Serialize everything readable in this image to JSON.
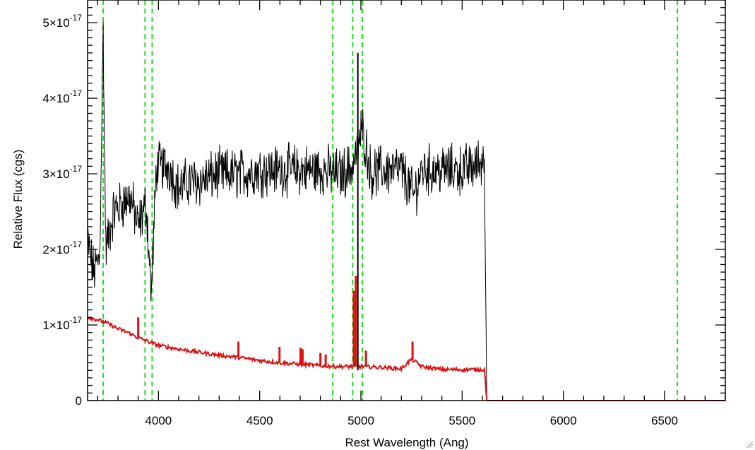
{
  "chart_data": {
    "type": "line",
    "title": "",
    "xlabel": "Rest Wavelength (Ang)",
    "ylabel": "Relative Flux (cgs)",
    "xlim": [
      3650,
      6800
    ],
    "ylim": [
      0,
      5.3e-17
    ],
    "x_ticks": [
      {
        "value": 4000,
        "label": "4000"
      },
      {
        "value": 4500,
        "label": "4500"
      },
      {
        "value": 5000,
        "label": "5000"
      },
      {
        "value": 5500,
        "label": "5500"
      },
      {
        "value": 6000,
        "label": "6000"
      },
      {
        "value": 6500,
        "label": "6500"
      }
    ],
    "y_ticks": [
      {
        "value": 0,
        "mantissa": "0",
        "exponent": ""
      },
      {
        "value": 1e-17,
        "mantissa": "1×10",
        "exponent": "-17"
      },
      {
        "value": 2e-17,
        "mantissa": "2×10",
        "exponent": "-17"
      },
      {
        "value": 3e-17,
        "mantissa": "3×10",
        "exponent": "-17"
      },
      {
        "value": 4e-17,
        "mantissa": "4×10",
        "exponent": "-17"
      },
      {
        "value": 5e-17,
        "mantissa": "5×10",
        "exponent": "-17"
      }
    ],
    "reference_lines": {
      "color": "#22dd22",
      "style": "dashed",
      "x": [
        3727,
        3934,
        3969,
        4861,
        4959,
        5007,
        6563
      ]
    },
    "black_marker_line": {
      "x": 4985,
      "y_top": 4.6e-17,
      "y_bottom": 4e-18
    },
    "series": [
      {
        "color": "#000000",
        "noisy": true,
        "points": [
          [
            3650,
            2.1e-17
          ],
          [
            3680,
            1.7e-17
          ],
          [
            3710,
            1.9e-17
          ],
          [
            3727,
            4.9e-17
          ],
          [
            3740,
            2e-17
          ],
          [
            3780,
            2.5e-17
          ],
          [
            3820,
            2.6e-17
          ],
          [
            3860,
            2.7e-17
          ],
          [
            3900,
            2.3e-17
          ],
          [
            3940,
            2.6e-17
          ],
          [
            3965,
            1.4e-17
          ],
          [
            3990,
            3.1e-17
          ],
          [
            4050,
            3.1e-17
          ],
          [
            4100,
            2.8e-17
          ],
          [
            4150,
            2.9e-17
          ],
          [
            4200,
            2.9e-17
          ],
          [
            4300,
            3e-17
          ],
          [
            4400,
            3e-17
          ],
          [
            4500,
            3.05e-17
          ],
          [
            4600,
            3.05e-17
          ],
          [
            4700,
            3.05e-17
          ],
          [
            4800,
            3.05e-17
          ],
          [
            4900,
            3e-17
          ],
          [
            4960,
            3.1e-17
          ],
          [
            5007,
            3.6e-17
          ],
          [
            5050,
            3e-17
          ],
          [
            5100,
            3.05e-17
          ],
          [
            5200,
            3.05e-17
          ],
          [
            5260,
            2.7e-17
          ],
          [
            5300,
            3.05e-17
          ],
          [
            5400,
            3.05e-17
          ],
          [
            5500,
            3.05e-17
          ],
          [
            5560,
            3.1e-17
          ],
          [
            5610,
            3.2e-17
          ],
          [
            5612,
            2.5e-17
          ],
          [
            5622,
            0
          ],
          [
            6800,
            0
          ]
        ]
      },
      {
        "color": "#dd1111",
        "noisy": false,
        "points": [
          [
            3650,
            1.1e-17
          ],
          [
            3700,
            1.07e-17
          ],
          [
            3750,
            1.02e-17
          ],
          [
            3800,
            9.5e-18
          ],
          [
            3850,
            9e-18
          ],
          [
            3900,
            8.3e-18
          ],
          [
            3950,
            7.8e-18
          ],
          [
            4000,
            7.3e-18
          ],
          [
            4100,
            6.8e-18
          ],
          [
            4200,
            6.4e-18
          ],
          [
            4300,
            6e-18
          ],
          [
            4400,
            5.7e-18
          ],
          [
            4500,
            5.3e-18
          ],
          [
            4600,
            5e-18
          ],
          [
            4700,
            4.8e-18
          ],
          [
            4800,
            4.6e-18
          ],
          [
            4900,
            4.5e-18
          ],
          [
            5000,
            4.5e-18
          ],
          [
            5100,
            4.4e-18
          ],
          [
            5200,
            4.2e-18
          ],
          [
            5250,
            5.5e-18
          ],
          [
            5300,
            4.5e-18
          ],
          [
            5400,
            4.1e-18
          ],
          [
            5500,
            4.1e-18
          ],
          [
            5610,
            4.1e-18
          ],
          [
            5622,
            0
          ],
          [
            6800,
            0
          ]
        ],
        "spikes": [
          [
            3900,
            1.1e-17
          ],
          [
            4395,
            7.8e-18
          ],
          [
            4598,
            7.1e-18
          ],
          [
            4702,
            7e-18
          ],
          [
            4712,
            6.8e-18
          ],
          [
            4800,
            6.3e-18
          ],
          [
            4826,
            6.1e-18
          ],
          [
            4965,
            1.45e-17
          ],
          [
            4975,
            1.65e-17
          ],
          [
            5025,
            6.6e-18
          ],
          [
            5255,
            7.8e-18
          ]
        ]
      }
    ]
  }
}
